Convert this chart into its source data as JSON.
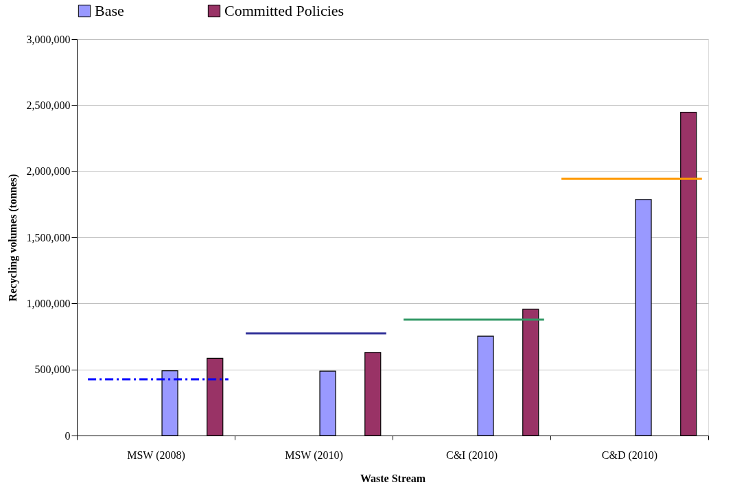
{
  "chart_data": {
    "type": "bar",
    "xlabel": "Waste Stream",
    "ylabel": "Recycling volumes (tonnes)",
    "categories": [
      "MSW (2008)",
      "MSW (2010)",
      "C&I (2010)",
      "C&D (2010)"
    ],
    "series": [
      {
        "name": "Base",
        "color": "#9999ff",
        "values": [
          490000,
          487000,
          752000,
          1786000
        ]
      },
      {
        "name": "Committed Policies",
        "color": "#993366",
        "values": [
          585000,
          629000,
          956000,
          2447000
        ]
      }
    ],
    "ylim": [
      0,
      3000000
    ],
    "yticks": [
      {
        "value": 0,
        "label": "0"
      },
      {
        "value": 500000,
        "label": "500,000"
      },
      {
        "value": 1000000,
        "label": "1,000,000"
      },
      {
        "value": 1500000,
        "label": "1,500,000"
      },
      {
        "value": 2000000,
        "label": "2,000,000"
      },
      {
        "value": 2500000,
        "label": "2,500,000"
      },
      {
        "value": 3000000,
        "label": "3,000,000"
      }
    ],
    "ref_lines": [
      {
        "axis": "y",
        "value": 425000,
        "color": "#0000ff",
        "line_style": "dashed"
      },
      {
        "axis": "y",
        "value": 774000,
        "color": "#333399",
        "line_style": "solid"
      },
      {
        "axis": "y",
        "value": 877000,
        "color": "#339966",
        "line_style": "solid"
      },
      {
        "axis": "y",
        "value": 1944000,
        "color": "#ff9900",
        "line_style": "solid"
      }
    ],
    "grid": "y",
    "legend": "top"
  }
}
